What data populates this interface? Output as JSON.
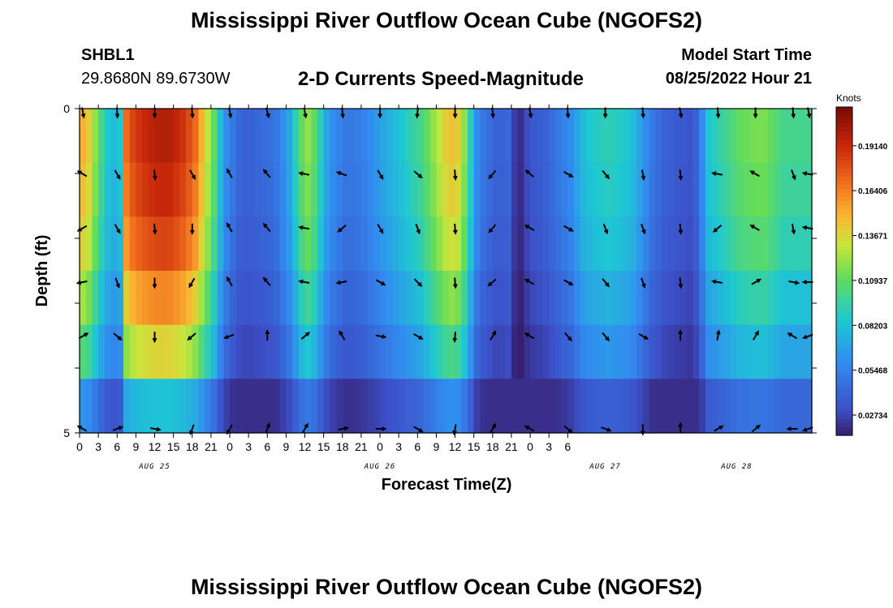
{
  "header": {
    "title": "Mississippi River Outflow Ocean Cube (NGOFS2)",
    "station_id": "SHBL1",
    "station_coords": "29.8680N  89.6730W",
    "subtitle": "2-D Currents Speed-Magnitude",
    "start_label": "Model Start Time",
    "start_value": "08/25/2022 Hour 21"
  },
  "footer": {
    "title": "Mississippi River Outflow Ocean Cube (NGOFS2)"
  },
  "chart_data": {
    "type": "heatmap",
    "title": "2-D Currents Speed-Magnitude",
    "xlabel": "Forecast Time(Z)",
    "ylabel": "Depth (ft)",
    "x_tick_labels": [
      "0",
      "3",
      "6",
      "9",
      "12",
      "15",
      "18",
      "21",
      "0",
      "3",
      "6",
      "9",
      "12",
      "15",
      "18",
      "21",
      "0",
      "3",
      "6",
      "9",
      "12",
      "15",
      "18",
      "21",
      "0",
      "3",
      "6"
    ],
    "day_labels": [
      {
        "label": "AUG 25",
        "hour": 12
      },
      {
        "label": "AUG 26",
        "hour": 48
      },
      {
        "label": "AUG 27",
        "hour": 84
      },
      {
        "label": "AUG 28",
        "hour": 105
      }
    ],
    "x_range": [
      0,
      117
    ],
    "y_range": [
      0,
      5
    ],
    "y_tick_labels": [
      "0",
      "5"
    ],
    "y_minor_ticks": [
      1,
      2,
      3,
      4
    ],
    "colorbar": {
      "unit": "Knots",
      "ticks": [
        "0.02734",
        "0.05468",
        "0.08203",
        "0.10937",
        "0.13671",
        "0.16406",
        "0.19140"
      ],
      "tick_values": [
        0.02734,
        0.05468,
        0.08203,
        0.10937,
        0.13671,
        0.16406,
        0.1914
      ],
      "range": [
        0.015,
        0.215
      ]
    },
    "speed_profile_hours": [
      0,
      1,
      2,
      3,
      4,
      5,
      6,
      7,
      8,
      9,
      10,
      11,
      12,
      13,
      14,
      15,
      16,
      17,
      18,
      19,
      20,
      21,
      22,
      23,
      24,
      25,
      26,
      27,
      28,
      29,
      30,
      31,
      32,
      33,
      34,
      35,
      36,
      37,
      38,
      39,
      40,
      41,
      42,
      43,
      44,
      45,
      46,
      47,
      48,
      49,
      50,
      51,
      52,
      53,
      54,
      55,
      56,
      57,
      58,
      59,
      60,
      61,
      62,
      63,
      64,
      65,
      66,
      67,
      68,
      69,
      70,
      71,
      72,
      73,
      74,
      75,
      76,
      77,
      78,
      79,
      80,
      81,
      82,
      83,
      84,
      85,
      86,
      87,
      88,
      89,
      90,
      91,
      92,
      93,
      94,
      95,
      96,
      97,
      98,
      99,
      100,
      101,
      102,
      103,
      104,
      105,
      106,
      107,
      108,
      109,
      110,
      111,
      112,
      113,
      114,
      115,
      116,
      117
    ],
    "speed_profile": [
      0.15,
      0.14,
      0.12,
      0.1,
      0.085,
      0.08,
      0.085,
      0.17,
      0.182,
      0.188,
      0.192,
      0.195,
      0.197,
      0.198,
      0.197,
      0.193,
      0.188,
      0.18,
      0.17,
      0.15,
      0.13,
      0.11,
      0.08,
      0.06,
      0.05,
      0.042,
      0.04,
      0.04,
      0.042,
      0.044,
      0.046,
      0.05,
      0.06,
      0.07,
      0.09,
      0.11,
      0.12,
      0.11,
      0.09,
      0.07,
      0.06,
      0.055,
      0.05,
      0.05,
      0.052,
      0.055,
      0.06,
      0.065,
      0.07,
      0.075,
      0.08,
      0.085,
      0.09,
      0.095,
      0.1,
      0.11,
      0.12,
      0.13,
      0.14,
      0.145,
      0.14,
      0.12,
      0.09,
      0.06,
      0.05,
      0.045,
      0.04,
      0.04,
      0.042,
      0.025,
      0.02,
      0.03,
      0.035,
      0.037,
      0.04,
      0.045,
      0.05,
      0.055,
      0.06,
      0.07,
      0.08,
      0.085,
      0.088,
      0.09,
      0.092,
      0.09,
      0.088,
      0.085,
      0.08,
      0.07,
      0.06,
      0.05,
      0.045,
      0.04,
      0.038,
      0.036,
      0.035,
      0.033,
      0.04,
      0.06,
      0.085,
      0.09,
      0.095,
      0.1,
      0.105,
      0.11,
      0.112,
      0.114,
      0.115,
      0.115,
      0.11,
      0.105,
      0.1,
      0.1,
      0.1,
      0.1,
      0.1,
      0.1
    ],
    "depth_layer_factors": [
      1.0,
      0.97,
      0.92,
      0.82,
      0.7,
      0.42
    ],
    "vector_hours": [
      0,
      6,
      12,
      18,
      24,
      30,
      36,
      42,
      48,
      54,
      60,
      66,
      72,
      78,
      84,
      90,
      96,
      102,
      108,
      114,
      117
    ],
    "vector_directions_deg": [
      [
        170,
        175,
        180,
        175,
        170,
        165,
        170,
        175,
        180,
        185,
        180,
        175,
        170,
        175,
        180,
        175,
        170,
        175,
        180,
        175,
        170
      ],
      [
        300,
        150,
        175,
        150,
        330,
        320,
        280,
        290,
        150,
        130,
        175,
        220,
        310,
        120,
        140,
        170,
        175,
        280,
        300,
        160,
        280
      ],
      [
        240,
        150,
        175,
        180,
        330,
        320,
        280,
        230,
        150,
        160,
        175,
        220,
        300,
        120,
        160,
        160,
        175,
        230,
        300,
        170,
        280
      ],
      [
        260,
        160,
        180,
        210,
        330,
        320,
        280,
        260,
        120,
        135,
        175,
        230,
        300,
        120,
        140,
        160,
        175,
        280,
        60,
        100,
        270
      ],
      [
        60,
        130,
        180,
        230,
        250,
        0,
        50,
        330,
        100,
        120,
        185,
        30,
        300,
        140,
        140,
        120,
        0,
        10,
        30,
        300,
        250
      ],
      [
        300,
        70,
        100,
        200,
        210,
        20,
        30,
        80,
        90,
        120,
        190,
        30,
        300,
        130,
        110,
        180,
        0,
        60,
        50,
        270,
        250
      ]
    ]
  }
}
